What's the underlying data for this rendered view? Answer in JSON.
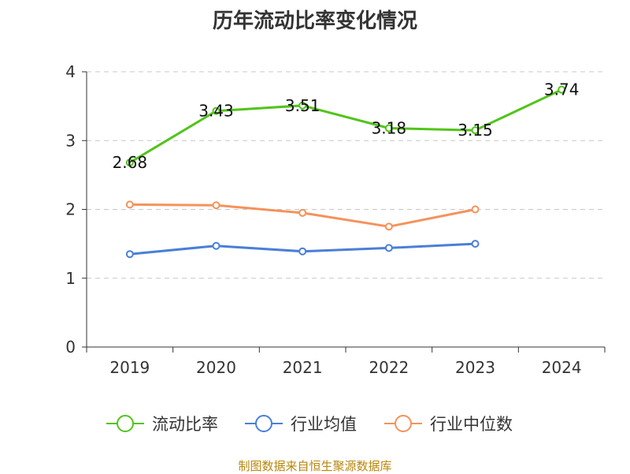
{
  "chart_data": {
    "type": "line",
    "title": "历年流动比率变化情况",
    "categories": [
      "2019",
      "2020",
      "2021",
      "2022",
      "2023",
      "2024"
    ],
    "ylim": [
      0,
      4
    ],
    "yticks": [
      0,
      1,
      2,
      3,
      4
    ],
    "grid": true,
    "legend_position": "bottom",
    "series": [
      {
        "name": "流动比率",
        "color": "#52c41a",
        "values": [
          2.68,
          3.43,
          3.51,
          3.18,
          3.15,
          3.74
        ],
        "labels": [
          "2.68",
          "3.43",
          "3.51",
          "3.18",
          "3.15",
          "3.74"
        ]
      },
      {
        "name": "行业均值",
        "color": "#4a7fd6",
        "values": [
          1.35,
          1.47,
          1.39,
          1.44,
          1.5,
          null
        ]
      },
      {
        "name": "行业中位数",
        "color": "#f5925c",
        "values": [
          2.07,
          2.06,
          1.95,
          1.75,
          2.0,
          null
        ]
      }
    ]
  },
  "footer": {
    "source": "制图数据来自恒生聚源数据库"
  }
}
